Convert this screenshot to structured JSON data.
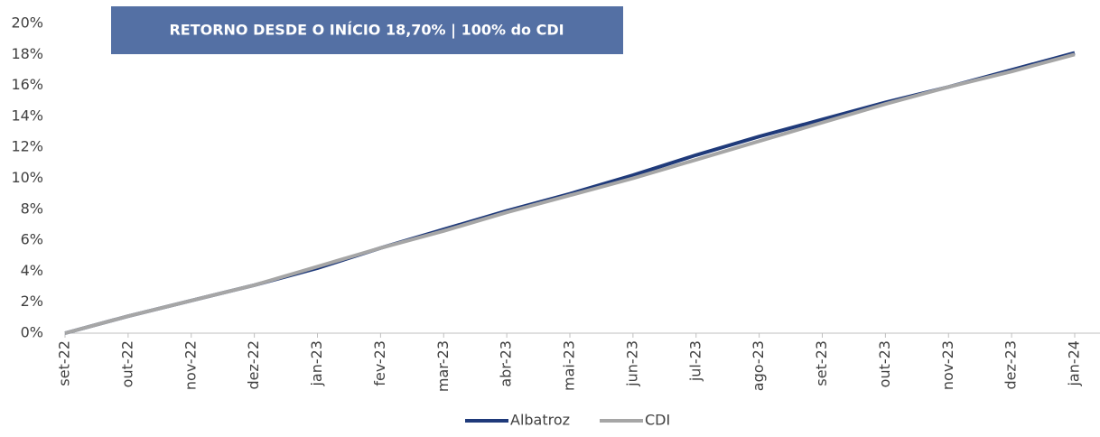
{
  "chart_data": {
    "type": "line",
    "annotation": "RETORNO DESDE O INÍCIO 18,70% |  100% do CDI",
    "categories": [
      "set-22",
      "out-22",
      "nov-22",
      "dez-22",
      "jan-23",
      "fev-23",
      "mar-23",
      "abr-23",
      "mai-23",
      "jun-23",
      "jul-23",
      "ago-23",
      "set-23",
      "out-23",
      "nov-23",
      "dez-23",
      "jan-24"
    ],
    "series": [
      {
        "name": "Albatroz",
        "color": "#1f3a7a",
        "values": [
          0,
          1.1,
          2.1,
          3.1,
          4.2,
          5.5,
          6.7,
          7.9,
          9.0,
          10.2,
          11.5,
          12.7,
          13.8,
          14.9,
          15.9,
          17.0,
          18.1
        ]
      },
      {
        "name": "CDI",
        "color": "#a6a6a6",
        "values": [
          0,
          1.1,
          2.1,
          3.1,
          4.3,
          5.5,
          6.6,
          7.8,
          8.9,
          10.0,
          11.2,
          12.4,
          13.6,
          14.8,
          15.9,
          16.9,
          18.0
        ]
      }
    ],
    "ylim": [
      0,
      20
    ],
    "yticks": [
      {
        "value": 0,
        "label": "0%"
      },
      {
        "value": 2,
        "label": "2%"
      },
      {
        "value": 4,
        "label": "4%"
      },
      {
        "value": 6,
        "label": "6%"
      },
      {
        "value": 8,
        "label": "8%"
      },
      {
        "value": 10,
        "label": "10%"
      },
      {
        "value": 12,
        "label": "12%"
      },
      {
        "value": 14,
        "label": "14%"
      },
      {
        "value": 16,
        "label": "16%"
      },
      {
        "value": 18,
        "label": "18%"
      },
      {
        "value": 20,
        "label": "20%"
      }
    ],
    "legend": "bottom"
  }
}
